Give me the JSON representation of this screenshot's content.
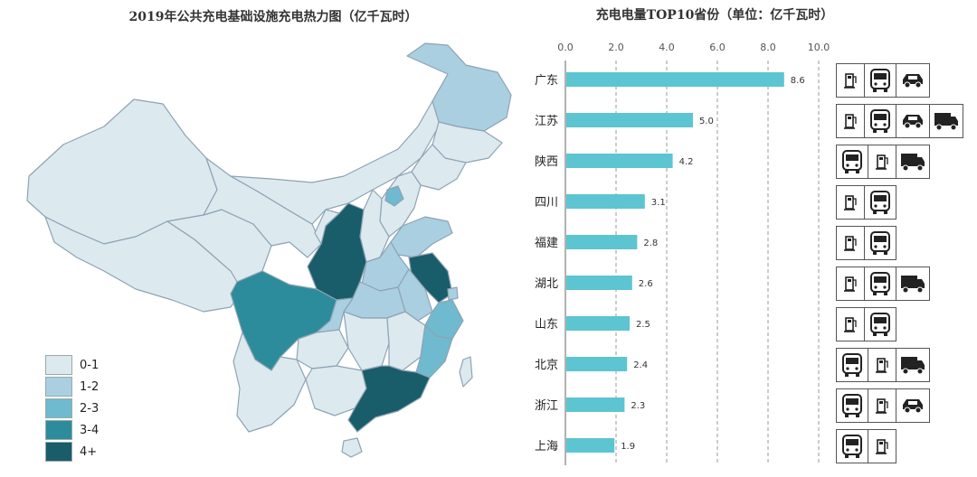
{
  "map": {
    "title": "2019年公共充电基础设施充电热力图（亿千瓦时）",
    "colors": [
      "#dce9ef",
      "#a9cfe0",
      "#6fbace",
      "#2d8c9c",
      "#195d6a"
    ],
    "legend": [
      {
        "label": "0-1",
        "color": "#dce9ef"
      },
      {
        "label": "1-2",
        "color": "#a9cfe0"
      },
      {
        "label": "2-3",
        "color": "#6fbace"
      },
      {
        "label": "3-4",
        "color": "#2d8c9c"
      },
      {
        "label": "4+",
        "color": "#195d6a"
      }
    ]
  },
  "chart_data": {
    "type": "bar",
    "orientation": "horizontal",
    "title": "充电电量TOP10省份（单位：亿千瓦时）",
    "categories": [
      "广东",
      "江苏",
      "陕西",
      "四川",
      "福建",
      "湖北",
      "山东",
      "北京",
      "浙江",
      "上海"
    ],
    "values": [
      8.6,
      5.0,
      4.2,
      3.1,
      2.8,
      2.6,
      2.5,
      2.4,
      2.3,
      1.9
    ],
    "value_labels": [
      "8.6",
      "5.0",
      "4.2",
      "3.1",
      "2.8",
      "2.6",
      "2.5",
      "2.4",
      "2.3",
      "1.9"
    ],
    "xlim": [
      0,
      10
    ],
    "ticks": [
      "0.0",
      "2.0",
      "4.0",
      "6.0",
      "8.0",
      "10.0"
    ],
    "bar_color": "#5cc5d1",
    "grid": true,
    "icons": [
      [
        "charger-icon",
        "bus-icon",
        "car-icon"
      ],
      [
        "charger-icon",
        "bus-icon",
        "car-icon",
        "truck-icon"
      ],
      [
        "bus-icon",
        "charger-icon",
        "truck-icon"
      ],
      [
        "charger-icon",
        "bus-icon"
      ],
      [
        "charger-icon",
        "bus-icon"
      ],
      [
        "charger-icon",
        "bus-icon",
        "truck-icon"
      ],
      [
        "charger-icon",
        "bus-icon"
      ],
      [
        "bus-icon",
        "charger-icon",
        "truck-icon"
      ],
      [
        "bus-icon",
        "charger-icon",
        "car-icon"
      ],
      [
        "bus-icon",
        "charger-icon"
      ]
    ]
  }
}
